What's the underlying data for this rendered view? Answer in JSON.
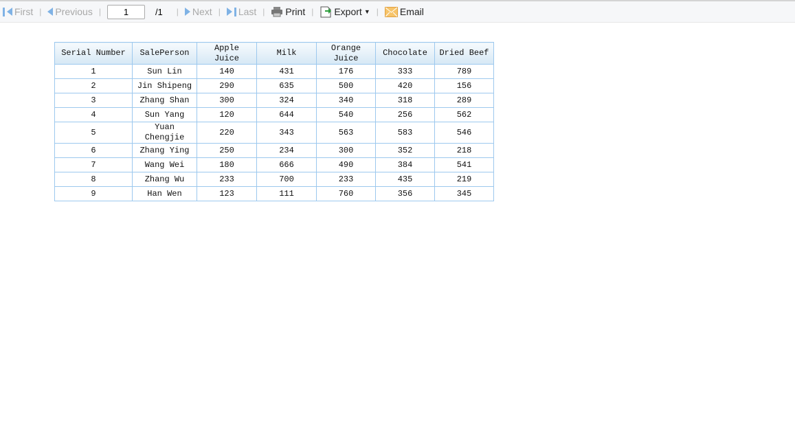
{
  "toolbar": {
    "first": "First",
    "previous": "Previous",
    "page_value": "1",
    "page_total": "/1",
    "next": "Next",
    "last": "Last",
    "print": "Print",
    "export": "Export",
    "email": "Email"
  },
  "table": {
    "headers": [
      "Serial Number",
      "SalePerson",
      "Apple Juice",
      "Milk",
      "Orange Juice",
      "Chocolate",
      "Dried Beef"
    ],
    "rows": [
      [
        "1",
        "Sun Lin",
        "140",
        "431",
        "176",
        "333",
        "789"
      ],
      [
        "2",
        "Jin Shipeng",
        "290",
        "635",
        "500",
        "420",
        "156"
      ],
      [
        "3",
        "Zhang Shan",
        "300",
        "324",
        "340",
        "318",
        "289"
      ],
      [
        "4",
        "Sun Yang",
        "120",
        "644",
        "540",
        "256",
        "562"
      ],
      [
        "5",
        "Yuan Chengjie",
        "220",
        "343",
        "563",
        "583",
        "546"
      ],
      [
        "6",
        "Zhang Ying",
        "250",
        "234",
        "300",
        "352",
        "218"
      ],
      [
        "7",
        "Wang Wei",
        "180",
        "666",
        "490",
        "384",
        "541"
      ],
      [
        "8",
        "Zhang Wu",
        "233",
        "700",
        "233",
        "435",
        "219"
      ],
      [
        "9",
        "Han Wen",
        "123",
        "111",
        "760",
        "356",
        "345"
      ]
    ]
  }
}
